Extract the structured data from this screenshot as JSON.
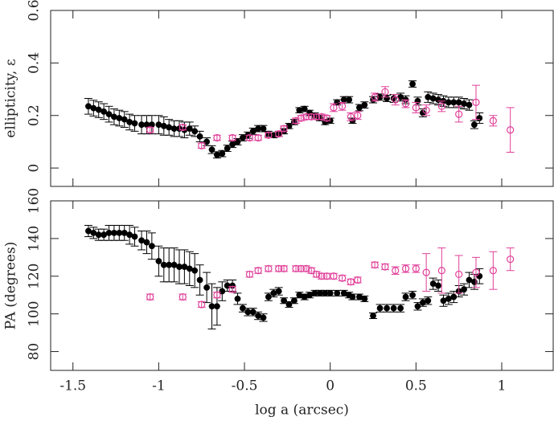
{
  "chart_data": [
    {
      "type": "scatter",
      "ylabel": "ellipticity, ε",
      "xlim": [
        -1.63,
        1.3
      ],
      "xticks": [
        -1.5,
        -1,
        -0.5,
        0,
        0.5,
        1
      ],
      "ylim": [
        -0.07,
        0.6
      ],
      "yticks": [
        0,
        0.2,
        0.4,
        0.6
      ],
      "series": [
        {
          "color": "#000000",
          "marker": "filled",
          "x": [
            -1.41,
            -1.38,
            -1.35,
            -1.32,
            -1.29,
            -1.26,
            -1.23,
            -1.2,
            -1.17,
            -1.14,
            -1.1,
            -1.07,
            -1.04,
            -1.0,
            -0.97,
            -0.94,
            -0.91,
            -0.88,
            -0.85,
            -0.82,
            -0.79,
            -0.76,
            -0.72,
            -0.69,
            -0.66,
            -0.63,
            -0.6,
            -0.57,
            -0.54,
            -0.51,
            -0.48,
            -0.45,
            -0.42,
            -0.39,
            -0.36,
            -0.33,
            -0.3,
            -0.27,
            -0.24,
            -0.21,
            -0.18,
            -0.15,
            -0.12,
            -0.09,
            -0.06,
            -0.03,
            0.0,
            0.04,
            0.08,
            0.11,
            0.13,
            0.17,
            0.2,
            0.25,
            0.29,
            0.33,
            0.37,
            0.41,
            0.44,
            0.48,
            0.51,
            0.54,
            0.57,
            0.6,
            0.63,
            0.66,
            0.69,
            0.72,
            0.75,
            0.78,
            0.81,
            0.84,
            0.87
          ],
          "values": [
            0.235,
            0.228,
            0.222,
            0.215,
            0.205,
            0.195,
            0.19,
            0.185,
            0.175,
            0.17,
            0.165,
            0.165,
            0.165,
            0.165,
            0.16,
            0.155,
            0.15,
            0.15,
            0.145,
            0.15,
            0.14,
            0.12,
            0.1,
            0.07,
            0.05,
            0.055,
            0.075,
            0.09,
            0.1,
            0.115,
            0.125,
            0.14,
            0.15,
            0.15,
            0.13,
            0.125,
            0.13,
            0.14,
            0.16,
            0.175,
            0.22,
            0.225,
            0.21,
            0.2,
            0.19,
            0.175,
            0.18,
            0.25,
            0.26,
            0.26,
            0.18,
            0.23,
            0.24,
            0.26,
            0.27,
            0.265,
            0.265,
            0.27,
            0.26,
            0.32,
            0.255,
            0.21,
            0.27,
            0.265,
            0.26,
            0.255,
            0.25,
            0.25,
            0.25,
            0.245,
            0.24,
            0.165,
            0.19
          ],
          "errors": [
            0.03,
            0.03,
            0.03,
            0.03,
            0.03,
            0.03,
            0.03,
            0.03,
            0.03,
            0.03,
            0.035,
            0.035,
            0.035,
            0.035,
            0.035,
            0.03,
            0.03,
            0.03,
            0.03,
            0.025,
            0.02,
            0.02,
            0.015,
            0.015,
            0.012,
            0.012,
            0.012,
            0.012,
            0.012,
            0.012,
            0.012,
            0.012,
            0.012,
            0.012,
            0.01,
            0.01,
            0.01,
            0.01,
            0.01,
            0.01,
            0.01,
            0.01,
            0.01,
            0.01,
            0.01,
            0.01,
            0.01,
            0.01,
            0.012,
            0.012,
            0.01,
            0.012,
            0.012,
            0.012,
            0.012,
            0.012,
            0.015,
            0.015,
            0.015,
            0.012,
            0.015,
            0.015,
            0.02,
            0.02,
            0.02,
            0.02,
            0.02,
            0.02,
            0.02,
            0.02,
            0.02,
            0.015,
            0.02
          ]
        },
        {
          "color": "#e0409a",
          "marker": "open",
          "x": [
            -1.05,
            -0.86,
            -0.75,
            -0.66,
            -0.57,
            -0.47,
            -0.42,
            -0.36,
            -0.3,
            -0.27,
            -0.2,
            -0.17,
            -0.14,
            -0.11,
            -0.08,
            -0.05,
            -0.02,
            0.02,
            0.07,
            0.12,
            0.16,
            0.26,
            0.32,
            0.38,
            0.44,
            0.5,
            0.56,
            0.65,
            0.75,
            0.85,
            0.95,
            1.05
          ],
          "values": [
            0.145,
            0.155,
            0.085,
            0.115,
            0.115,
            0.115,
            0.115,
            0.125,
            0.13,
            0.15,
            0.18,
            0.19,
            0.195,
            0.195,
            0.195,
            0.195,
            0.19,
            0.23,
            0.235,
            0.195,
            0.2,
            0.27,
            0.29,
            0.26,
            0.245,
            0.23,
            0.22,
            0.235,
            0.205,
            0.25,
            0.18,
            0.145
          ],
          "errors": [
            0.01,
            0.01,
            0.01,
            0.01,
            0.01,
            0.01,
            0.01,
            0.01,
            0.01,
            0.01,
            0.01,
            0.01,
            0.01,
            0.01,
            0.01,
            0.01,
            0.01,
            0.015,
            0.015,
            0.015,
            0.015,
            0.015,
            0.02,
            0.02,
            0.015,
            0.02,
            0.02,
            0.02,
            0.03,
            0.065,
            0.02,
            0.085
          ]
        }
      ]
    },
    {
      "type": "scatter",
      "ylabel": "PA (degrees)",
      "xlabel": "log a (arcsec)",
      "xlim": [
        -1.63,
        1.3
      ],
      "xticks": [
        -1.5,
        -1,
        -0.5,
        0,
        0.5,
        1
      ],
      "ylim": [
        70,
        160
      ],
      "yticks": [
        80,
        100,
        120,
        140,
        160
      ],
      "series": [
        {
          "color": "#000000",
          "marker": "filled",
          "x": [
            -1.41,
            -1.38,
            -1.35,
            -1.32,
            -1.29,
            -1.26,
            -1.23,
            -1.2,
            -1.17,
            -1.14,
            -1.1,
            -1.07,
            -1.04,
            -1.0,
            -0.97,
            -0.94,
            -0.91,
            -0.88,
            -0.85,
            -0.82,
            -0.79,
            -0.76,
            -0.72,
            -0.69,
            -0.66,
            -0.63,
            -0.6,
            -0.57,
            -0.54,
            -0.51,
            -0.48,
            -0.45,
            -0.42,
            -0.39,
            -0.36,
            -0.33,
            -0.3,
            -0.27,
            -0.24,
            -0.21,
            -0.18,
            -0.15,
            -0.12,
            -0.09,
            -0.06,
            -0.03,
            0.0,
            0.04,
            0.08,
            0.11,
            0.13,
            0.17,
            0.2,
            0.25,
            0.29,
            0.33,
            0.37,
            0.41,
            0.44,
            0.48,
            0.51,
            0.54,
            0.57,
            0.6,
            0.63,
            0.66,
            0.69,
            0.72,
            0.75,
            0.78,
            0.81,
            0.84,
            0.87
          ],
          "values": [
            144,
            143,
            142,
            142,
            143,
            143,
            143,
            143,
            142,
            141,
            139,
            138,
            136,
            128,
            126,
            126,
            126,
            125,
            125,
            124,
            123,
            118,
            114,
            104,
            104,
            112,
            115,
            115,
            108,
            103,
            101,
            101,
            99,
            98,
            109,
            111,
            112,
            107,
            105,
            107,
            110,
            109,
            110,
            111,
            111,
            111,
            111,
            111,
            111,
            110,
            109,
            109,
            108,
            99,
            103,
            103,
            103,
            103,
            109,
            110,
            104,
            106,
            107,
            116,
            115,
            107,
            108,
            109,
            112,
            113,
            118,
            117,
            120
          ],
          "errors": [
            3,
            3,
            3,
            3,
            4,
            4,
            4,
            4,
            5,
            5,
            5,
            6,
            7,
            8,
            9,
            9,
            9,
            9,
            9,
            9,
            9,
            8,
            8,
            12,
            10,
            5,
            3,
            3,
            3,
            2,
            2,
            2,
            2,
            2,
            2,
            2,
            2,
            1.5,
            1.5,
            1.5,
            1.5,
            1.5,
            1.5,
            1.5,
            1.5,
            1.5,
            1.5,
            1.5,
            1.5,
            1.5,
            1.5,
            1.5,
            1.5,
            1.5,
            2,
            2,
            2,
            2,
            2,
            2,
            2,
            2,
            2,
            3,
            3,
            3,
            3,
            3,
            3,
            3,
            4,
            4,
            4
          ]
        },
        {
          "color": "#e0409a",
          "marker": "open",
          "x": [
            -1.05,
            -0.86,
            -0.75,
            -0.66,
            -0.57,
            -0.47,
            -0.42,
            -0.36,
            -0.3,
            -0.27,
            -0.2,
            -0.17,
            -0.14,
            -0.11,
            -0.08,
            -0.05,
            -0.02,
            0.02,
            0.07,
            0.12,
            0.16,
            0.26,
            0.32,
            0.38,
            0.44,
            0.5,
            0.56,
            0.65,
            0.75,
            0.85,
            0.95,
            1.05
          ],
          "values": [
            109,
            109,
            105,
            110,
            113,
            121,
            123,
            124,
            124,
            124,
            124,
            124,
            124,
            123,
            121,
            120,
            120,
            120,
            119,
            117,
            118,
            126,
            125,
            123,
            124,
            124,
            122,
            123,
            121,
            122,
            123,
            129
          ],
          "errors": [
            1.5,
            1.5,
            1.5,
            1.5,
            1.5,
            1.5,
            1.5,
            1.5,
            1.5,
            1.5,
            1.5,
            1.5,
            1.5,
            1.5,
            1.5,
            1.5,
            1.5,
            1.5,
            1.5,
            1.5,
            1.5,
            1.5,
            1.5,
            2,
            2,
            2,
            10,
            12,
            10,
            8,
            10,
            6
          ]
        }
      ]
    }
  ]
}
